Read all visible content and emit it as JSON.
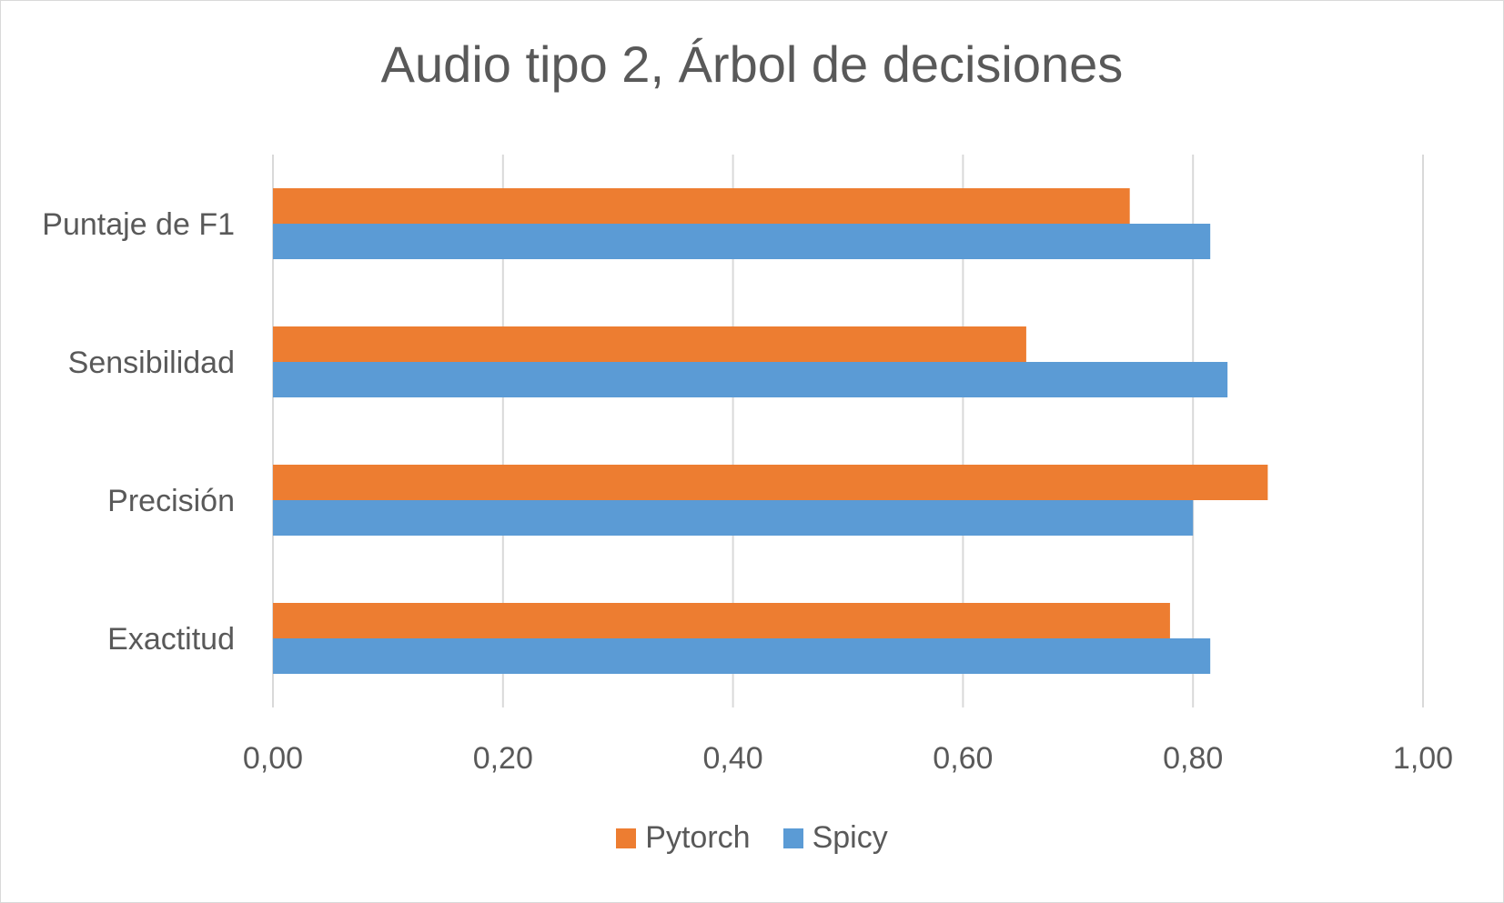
{
  "chart_data": {
    "type": "bar",
    "orientation": "horizontal",
    "title": "Audio tipo 2, Árbol de decisiones",
    "categories": [
      "Puntaje de F1",
      "Sensibilidad",
      "Precisión",
      "Exactitud"
    ],
    "series": [
      {
        "name": "Pytorch",
        "color": "#ed7d31",
        "values": [
          0.745,
          0.655,
          0.865,
          0.78
        ]
      },
      {
        "name": "Spicy",
        "color": "#5b9bd5",
        "values": [
          0.815,
          0.83,
          0.8,
          0.815
        ]
      }
    ],
    "xlim": [
      0,
      1
    ],
    "xticks": [
      "0,00",
      "0,20",
      "0,40",
      "0,60",
      "0,80",
      "1,00"
    ],
    "grid": true,
    "legend_position": "bottom"
  }
}
